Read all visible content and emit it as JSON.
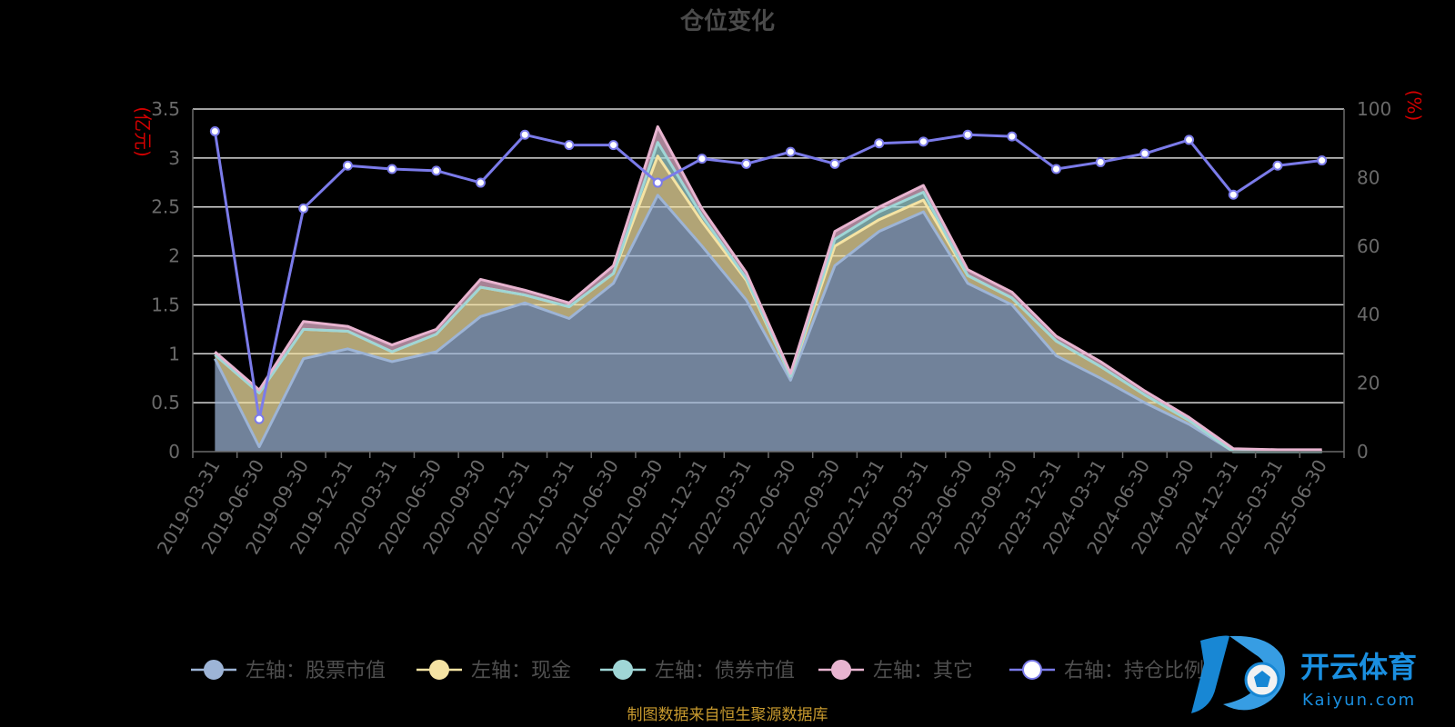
{
  "chart_data": {
    "type": "area",
    "title": "仓位变化",
    "left_unit": "(亿元)",
    "right_unit": "(%)",
    "categories": [
      "2019-03-31",
      "2019-06-30",
      "2019-09-30",
      "2019-12-31",
      "2020-03-31",
      "2020-06-30",
      "2020-09-30",
      "2020-12-31",
      "2021-03-31",
      "2021-06-30",
      "2021-09-30",
      "2021-12-31",
      "2022-03-31",
      "2022-06-30",
      "2022-09-30",
      "2022-12-31",
      "2023-03-31",
      "2023-06-30",
      "2023-09-30",
      "2023-12-31",
      "2024-03-31",
      "2024-06-30",
      "2024-09-30",
      "2024-12-31",
      "2025-03-31",
      "2025-06-30"
    ],
    "left_ylim": [
      0,
      3.5
    ],
    "left_ticks": [
      "0",
      "0.5",
      "1",
      "1.5",
      "2",
      "2.5",
      "3",
      "3.5"
    ],
    "right_ylim": [
      0,
      100
    ],
    "right_ticks": [
      "0",
      "20",
      "40",
      "60",
      "80",
      "100"
    ],
    "grid": true,
    "legend_position": "bottom",
    "series": [
      {
        "name": "左轴：股票市值",
        "axis": "left",
        "kind": "stacked-area",
        "color": "#9db4d6",
        "values": [
          0.95,
          0.05,
          0.95,
          1.05,
          0.92,
          1.02,
          1.38,
          1.52,
          1.36,
          1.72,
          2.62,
          2.1,
          1.55,
          0.73,
          1.9,
          2.25,
          2.45,
          1.72,
          1.5,
          0.98,
          0.75,
          0.5,
          0.28,
          0.0,
          0.0,
          0.0
        ]
      },
      {
        "name": "左轴：现金",
        "axis": "left",
        "kind": "stacked-area",
        "color": "#f5e3a3",
        "values": [
          0.04,
          0.55,
          0.3,
          0.18,
          0.1,
          0.18,
          0.3,
          0.08,
          0.12,
          0.1,
          0.4,
          0.25,
          0.2,
          0.04,
          0.2,
          0.12,
          0.12,
          0.08,
          0.07,
          0.15,
          0.12,
          0.08,
          0.04,
          0.0,
          0.0,
          0.0
        ]
      },
      {
        "name": "左轴：债券市值",
        "axis": "left",
        "kind": "stacked-area",
        "color": "#9fd6d6",
        "values": [
          0.0,
          0.0,
          0.0,
          0.0,
          0.0,
          0.0,
          0.0,
          0.0,
          0.0,
          0.0,
          0.14,
          0.06,
          0.02,
          0.0,
          0.07,
          0.08,
          0.08,
          0.0,
          0.0,
          0.0,
          0.0,
          0.0,
          0.0,
          0.0,
          0.0,
          0.0
        ]
      },
      {
        "name": "左轴：其它",
        "axis": "left",
        "kind": "stacked-area",
        "color": "#e8b4d0",
        "values": [
          0.03,
          0.03,
          0.08,
          0.05,
          0.07,
          0.05,
          0.08,
          0.05,
          0.04,
          0.08,
          0.16,
          0.07,
          0.06,
          0.03,
          0.08,
          0.05,
          0.07,
          0.06,
          0.06,
          0.05,
          0.05,
          0.04,
          0.03,
          0.03,
          0.02,
          0.02
        ]
      },
      {
        "name": "右轴：持仓比例",
        "axis": "right",
        "kind": "line",
        "color": "#7b7bea",
        "values": [
          93.5,
          9.5,
          71.0,
          83.5,
          82.5,
          82.0,
          78.5,
          92.5,
          89.5,
          89.5,
          78.5,
          85.5,
          84.0,
          87.5,
          84.0,
          90.0,
          90.5,
          92.5,
          92.0,
          82.5,
          84.5,
          87.0,
          91.0,
          75.0,
          83.5,
          85.0
        ]
      }
    ]
  },
  "footer": {
    "source": "制图数据来自恒生聚源数据库"
  },
  "watermark": {
    "name": "开云体育",
    "domain": "Kaiyun.com"
  }
}
